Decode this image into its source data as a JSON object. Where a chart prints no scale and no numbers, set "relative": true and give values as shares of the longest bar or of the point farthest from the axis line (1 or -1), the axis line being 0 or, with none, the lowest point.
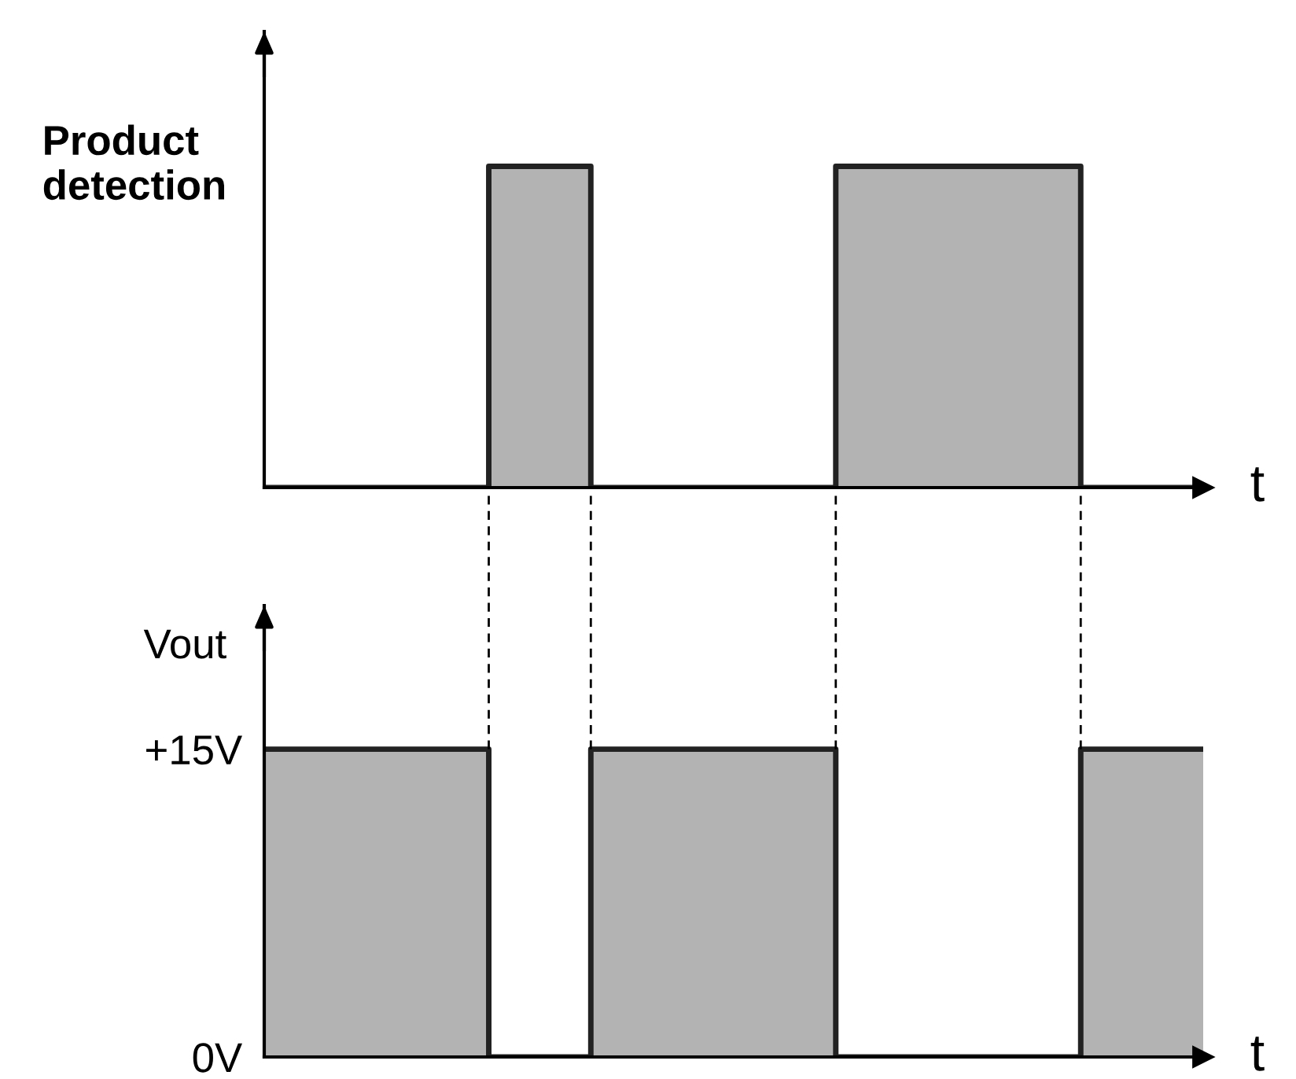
{
  "chart_data": [
    {
      "type": "area",
      "relative": true,
      "ylabel": "Product detection",
      "xlabel": "t",
      "categories": [
        null,
        null,
        null,
        null,
        null,
        null,
        null,
        null,
        null,
        null,
        null,
        null,
        null,
        null,
        null,
        null,
        null,
        null,
        null,
        null,
        null,
        null,
        null,
        null,
        null,
        null,
        null,
        null,
        null,
        null,
        null,
        null,
        null,
        null,
        null,
        null,
        null,
        null,
        null,
        null,
        null,
        null,
        null,
        null,
        null,
        null,
        null
      ],
      "series": [
        {
          "color": "#b3b3b3",
          "values": [
            0,
            0,
            0,
            0,
            0,
            0,
            0,
            0,
            0,
            0,
            0,
            1,
            1,
            1,
            1,
            1,
            0,
            0,
            0,
            0,
            0,
            0,
            0,
            0,
            0,
            0,
            0,
            0,
            1,
            1,
            1,
            1,
            1,
            1,
            1,
            1,
            1,
            1,
            1,
            1,
            0,
            0,
            0,
            0,
            0,
            0,
            0
          ]
        }
      ]
    },
    {
      "type": "area",
      "ylabel": "Vout",
      "xlabel": "t",
      "ylim": [
        0,
        22
      ],
      "yticks": [
        {
          "value": 0,
          "label": "0V"
        },
        {
          "value": 15,
          "label": "+15V"
        }
      ],
      "categories": [
        null,
        null,
        null,
        null,
        null,
        null,
        null,
        null,
        null,
        null,
        null,
        null,
        null,
        null,
        null,
        null,
        null,
        null,
        null,
        null,
        null,
        null,
        null,
        null,
        null,
        null,
        null,
        null,
        null,
        null,
        null,
        null,
        null,
        null,
        null,
        null,
        null,
        null,
        null,
        null,
        null,
        null,
        null,
        null,
        null,
        null,
        null
      ],
      "series": [
        {
          "color": "#b3b3b3",
          "values": [
            15,
            15,
            15,
            15,
            15,
            15,
            15,
            15,
            15,
            15,
            15,
            0,
            0,
            0,
            0,
            0,
            15,
            15,
            15,
            15,
            15,
            15,
            15,
            15,
            15,
            15,
            15,
            15,
            0,
            0,
            0,
            0,
            0,
            0,
            0,
            0,
            0,
            0,
            0,
            0,
            15,
            15,
            15,
            15,
            15,
            15,
            15
          ]
        }
      ]
    }
  ]
}
